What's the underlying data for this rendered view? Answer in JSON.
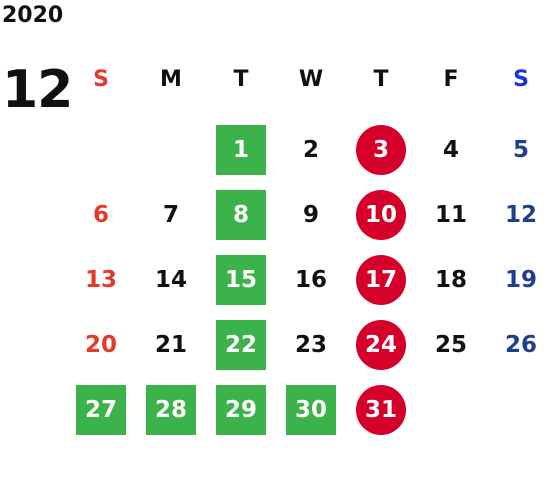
{
  "year": "2020",
  "month": "12",
  "colors": {
    "sunday": "#e23b2a",
    "saturday": "#1e3f8f",
    "saturday_header": "#1a36d8",
    "weekday": "#111111",
    "green_bg": "#3cb24a",
    "red_circle_bg": "#d5002a",
    "highlight_text": "#ffffff"
  },
  "weekdays": [
    {
      "label": "S",
      "kind": "sunday"
    },
    {
      "label": "M",
      "kind": "weekday"
    },
    {
      "label": "T",
      "kind": "weekday"
    },
    {
      "label": "W",
      "kind": "weekday"
    },
    {
      "label": "T",
      "kind": "weekday"
    },
    {
      "label": "F",
      "kind": "weekday"
    },
    {
      "label": "S",
      "kind": "saturday"
    }
  ],
  "weeks": [
    [
      null,
      null,
      {
        "d": "1",
        "style": "green"
      },
      {
        "d": "2"
      },
      {
        "d": "3",
        "style": "red"
      },
      {
        "d": "4"
      },
      {
        "d": "5"
      }
    ],
    [
      {
        "d": "6"
      },
      {
        "d": "7"
      },
      {
        "d": "8",
        "style": "green"
      },
      {
        "d": "9"
      },
      {
        "d": "10",
        "style": "red"
      },
      {
        "d": "11"
      },
      {
        "d": "12"
      }
    ],
    [
      {
        "d": "13"
      },
      {
        "d": "14"
      },
      {
        "d": "15",
        "style": "green"
      },
      {
        "d": "16"
      },
      {
        "d": "17",
        "style": "red"
      },
      {
        "d": "18"
      },
      {
        "d": "19"
      }
    ],
    [
      {
        "d": "20"
      },
      {
        "d": "21"
      },
      {
        "d": "22",
        "style": "green"
      },
      {
        "d": "23"
      },
      {
        "d": "24",
        "style": "red"
      },
      {
        "d": "25"
      },
      {
        "d": "26"
      }
    ],
    [
      {
        "d": "27",
        "style": "green"
      },
      {
        "d": "28",
        "style": "green"
      },
      {
        "d": "29",
        "style": "green"
      },
      {
        "d": "30",
        "style": "green"
      },
      {
        "d": "31",
        "style": "red"
      },
      null,
      null
    ]
  ]
}
